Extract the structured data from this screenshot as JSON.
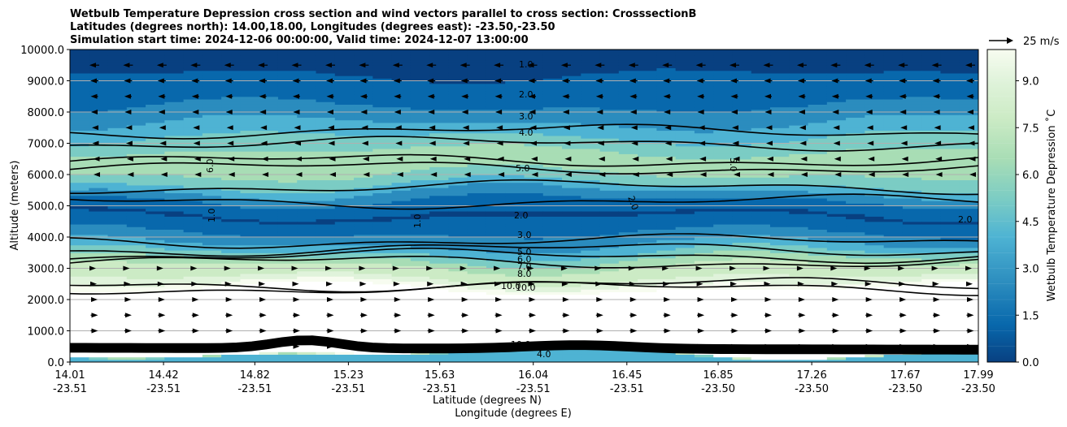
{
  "chart_data": {
    "type": "contourf",
    "title_lines": [
      "Wetbulb Temperature Depression cross section and wind vectors parallel to cross section: CrosssectionB",
      "Latitudes (degrees north): 14.00,18.00, Longitudes (degrees east): -23.50,-23.50",
      "Simulation start time: 2024-12-06 00:00:00, Valid time: 2024-12-07 13:00:00"
    ],
    "ylabel": "Altitude (meters)",
    "xlabel_lines": [
      "Latitude (degrees N)",
      "Longitude (degrees E)"
    ],
    "ylim": [
      0,
      10000
    ],
    "yticks": [
      "0.0",
      "1000.0",
      "2000.0",
      "3000.0",
      "4000.0",
      "5000.0",
      "6000.0",
      "7000.0",
      "8000.0",
      "9000.0",
      "10000.0"
    ],
    "xlim": [
      14.01,
      17.99
    ],
    "xticks": [
      {
        "lat": "14.01",
        "lon": "-23.51"
      },
      {
        "lat": "14.42",
        "lon": "-23.51"
      },
      {
        "lat": "14.82",
        "lon": "-23.51"
      },
      {
        "lat": "15.23",
        "lon": "-23.51"
      },
      {
        "lat": "15.63",
        "lon": "-23.51"
      },
      {
        "lat": "16.04",
        "lon": "-23.51"
      },
      {
        "lat": "16.45",
        "lon": "-23.51"
      },
      {
        "lat": "16.85",
        "lon": "-23.50"
      },
      {
        "lat": "17.26",
        "lon": "-23.50"
      },
      {
        "lat": "17.67",
        "lon": "-23.50"
      },
      {
        "lat": "17.99",
        "lon": "-23.50"
      }
    ],
    "colorbar": {
      "label": "Wetbulb Temperature Depression ˚C",
      "range": [
        0,
        10
      ],
      "ticks": [
        "0.0",
        "1.5",
        "3.0",
        "4.5",
        "6.0",
        "7.5",
        "9.0"
      ],
      "colors": [
        "#084081",
        "#0868ac",
        "#2b8cbe",
        "#4eb3d3",
        "#7bccc4",
        "#a8ddb5",
        "#ccebc5",
        "#e0f3db",
        "#f7fcf0"
      ]
    },
    "wind_key_label": "25 m/s",
    "contour_labels": [
      "1.0",
      "2.0",
      "3.0",
      "4.0",
      "5.0",
      "6.0",
      "7.0",
      "8.0",
      "9.0",
      "10.0"
    ],
    "profile": {
      "heights_m": [
        0,
        300,
        500,
        800,
        1000,
        1500,
        2000,
        2300,
        2600,
        3000,
        3300,
        3700,
        4200,
        4700,
        5000,
        5400,
        5800,
        6300,
        6800,
        7300,
        7800,
        8300,
        8800,
        9300,
        10000
      ],
      "depression_c": [
        3.5,
        4.5,
        40,
        40,
        40,
        40,
        40,
        10.5,
        8.0,
        7.0,
        5.5,
        3.5,
        2.0,
        1.0,
        1.5,
        3.0,
        5.0,
        6.2,
        5.5,
        4.2,
        3.0,
        2.0,
        1.5,
        1.0,
        0.6
      ]
    },
    "wind_rows": [
      {
        "height_m": 9500,
        "u_ms": -12
      },
      {
        "height_m": 9000,
        "u_ms": -10
      },
      {
        "height_m": 8500,
        "u_ms": -9
      },
      {
        "height_m": 8000,
        "u_ms": -8
      },
      {
        "height_m": 7500,
        "u_ms": -6
      },
      {
        "height_m": 7000,
        "u_ms": -5
      },
      {
        "height_m": 6500,
        "u_ms": -3
      },
      {
        "height_m": 6000,
        "u_ms": -2
      },
      {
        "height_m": 3000,
        "u_ms": 4
      },
      {
        "height_m": 2500,
        "u_ms": 6
      },
      {
        "height_m": 2000,
        "u_ms": 8
      },
      {
        "height_m": 1500,
        "u_ms": 9
      },
      {
        "height_m": 1000,
        "u_ms": 9
      },
      {
        "height_m": 500,
        "u_ms": 8
      }
    ]
  }
}
